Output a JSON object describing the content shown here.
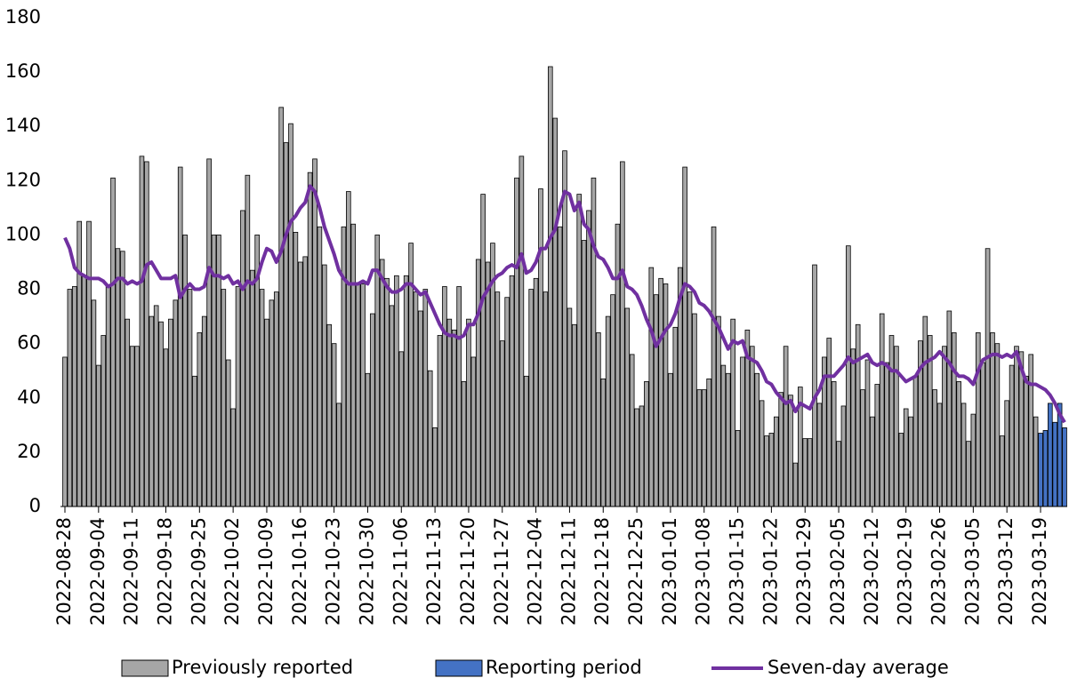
{
  "chart_data": {
    "type": "bar",
    "categories": [
      "2022-08-28",
      null,
      null,
      null,
      null,
      null,
      null,
      "2022-09-04",
      null,
      null,
      null,
      null,
      null,
      null,
      "2022-09-11",
      null,
      null,
      null,
      null,
      null,
      null,
      "2022-09-18",
      null,
      null,
      null,
      null,
      null,
      null,
      "2022-09-25",
      null,
      null,
      null,
      null,
      null,
      null,
      "2022-10-02",
      null,
      null,
      null,
      null,
      null,
      null,
      "2022-10-09",
      null,
      null,
      null,
      null,
      null,
      null,
      "2022-10-16",
      null,
      null,
      null,
      null,
      null,
      null,
      "2022-10-23",
      null,
      null,
      null,
      null,
      null,
      null,
      "2022-10-30",
      null,
      null,
      null,
      null,
      null,
      null,
      "2022-11-06",
      null,
      null,
      null,
      null,
      null,
      null,
      "2022-11-13",
      null,
      null,
      null,
      null,
      null,
      null,
      "2022-11-20",
      null,
      null,
      null,
      null,
      null,
      null,
      "2022-11-27",
      null,
      null,
      null,
      null,
      null,
      null,
      "2022-12-04",
      null,
      null,
      null,
      null,
      null,
      null,
      "2022-12-11",
      null,
      null,
      null,
      null,
      null,
      null,
      "2022-12-18",
      null,
      null,
      null,
      null,
      null,
      null,
      "2022-12-25",
      null,
      null,
      null,
      null,
      null,
      null,
      "2023-01-01",
      null,
      null,
      null,
      null,
      null,
      null,
      "2023-01-08",
      null,
      null,
      null,
      null,
      null,
      null,
      "2023-01-15",
      null,
      null,
      null,
      null,
      null,
      null,
      "2023-01-22",
      null,
      null,
      null,
      null,
      null,
      null,
      "2023-01-29",
      null,
      null,
      null,
      null,
      null,
      null,
      "2023-02-05",
      null,
      null,
      null,
      null,
      null,
      null,
      "2023-02-12",
      null,
      null,
      null,
      null,
      null,
      null,
      "2023-02-19",
      null,
      null,
      null,
      null,
      null,
      null,
      "2023-02-26",
      null,
      null,
      null,
      null,
      null,
      null,
      "2023-03-05",
      null,
      null,
      null,
      null,
      null,
      null,
      "2023-03-12",
      null,
      null,
      null,
      null,
      null,
      null,
      "2023-03-19",
      null,
      null,
      null,
      null,
      null
    ],
    "series": [
      {
        "name": "Previously reported",
        "type": "bar",
        "color": "#a6a6a6",
        "values": [
          55,
          80,
          81,
          105,
          85,
          105,
          76,
          52,
          63,
          81,
          121,
          95,
          94,
          69,
          59,
          59,
          129,
          127,
          70,
          74,
          68,
          58,
          69,
          76,
          125,
          100,
          80,
          48,
          64,
          70,
          128,
          100,
          100,
          80,
          54,
          36,
          81,
          109,
          122,
          87,
          100,
          80,
          69,
          76,
          79,
          147,
          134,
          141,
          101,
          90,
          92,
          123,
          128,
          103,
          89,
          67,
          60,
          38,
          103,
          116,
          104,
          82,
          82,
          49,
          71,
          100,
          91,
          84,
          74,
          85,
          57,
          85,
          97,
          79,
          72,
          80,
          50,
          29,
          63,
          81,
          69,
          65,
          81,
          46,
          69,
          55,
          91,
          115,
          90,
          97,
          79,
          61,
          77,
          85,
          121,
          129,
          48,
          80,
          84,
          117,
          79,
          162,
          143,
          103,
          131,
          73,
          67,
          115,
          98,
          109,
          121,
          64,
          47,
          70,
          78,
          104,
          127,
          73,
          56,
          36,
          37,
          46,
          88,
          78,
          84,
          82,
          49,
          66,
          88,
          125,
          79,
          71,
          43,
          43,
          47,
          103,
          70,
          52,
          49,
          69,
          28,
          55,
          65,
          59,
          49,
          39,
          26,
          27,
          33,
          42,
          59,
          41,
          16,
          44,
          25,
          25,
          89,
          38,
          55,
          62,
          46,
          24,
          37,
          96,
          58,
          67,
          43,
          54,
          33,
          45,
          71,
          53,
          63,
          59,
          27,
          36,
          33,
          48,
          61,
          70,
          63,
          43,
          38,
          59,
          72,
          64,
          46,
          38,
          24,
          34,
          64,
          53,
          95,
          64,
          60,
          26,
          39,
          52,
          59,
          57,
          48,
          56,
          33,
          null,
          null,
          null,
          null,
          null,
          null
        ]
      },
      {
        "name": "Reporting period",
        "type": "bar",
        "color": "#4472c4",
        "values": [
          null,
          null,
          null,
          null,
          null,
          null,
          null,
          null,
          null,
          null,
          null,
          null,
          null,
          null,
          null,
          null,
          null,
          null,
          null,
          null,
          null,
          null,
          null,
          null,
          null,
          null,
          null,
          null,
          null,
          null,
          null,
          null,
          null,
          null,
          null,
          null,
          null,
          null,
          null,
          null,
          null,
          null,
          null,
          null,
          null,
          null,
          null,
          null,
          null,
          null,
          null,
          null,
          null,
          null,
          null,
          null,
          null,
          null,
          null,
          null,
          null,
          null,
          null,
          null,
          null,
          null,
          null,
          null,
          null,
          null,
          null,
          null,
          null,
          null,
          null,
          null,
          null,
          null,
          null,
          null,
          null,
          null,
          null,
          null,
          null,
          null,
          null,
          null,
          null,
          null,
          null,
          null,
          null,
          null,
          null,
          null,
          null,
          null,
          null,
          null,
          null,
          null,
          null,
          null,
          null,
          null,
          null,
          null,
          null,
          null,
          null,
          null,
          null,
          null,
          null,
          null,
          null,
          null,
          null,
          null,
          null,
          null,
          null,
          null,
          null,
          null,
          null,
          null,
          null,
          null,
          null,
          null,
          null,
          null,
          null,
          null,
          null,
          null,
          null,
          null,
          null,
          null,
          null,
          null,
          null,
          null,
          null,
          null,
          null,
          null,
          null,
          null,
          null,
          null,
          null,
          null,
          null,
          null,
          null,
          null,
          null,
          null,
          null,
          null,
          null,
          null,
          null,
          null,
          null,
          null,
          null,
          null,
          null,
          null,
          null,
          null,
          null,
          null,
          null,
          null,
          null,
          null,
          null,
          null,
          null,
          null,
          null,
          null,
          null,
          null,
          null,
          null,
          null,
          null,
          null,
          null,
          null,
          null,
          null,
          null,
          null,
          null,
          null,
          27,
          28,
          38,
          31,
          38,
          29
        ]
      },
      {
        "name": "Seven-day average",
        "type": "line",
        "color": "#7030a0",
        "values": [
          99,
          95,
          88,
          86,
          85,
          84,
          84,
          84,
          83,
          81,
          82,
          84,
          84,
          82,
          83,
          82,
          83,
          89,
          90,
          87,
          84,
          84,
          84,
          85,
          77,
          80,
          82,
          80,
          80,
          81,
          88,
          85,
          85,
          84,
          85,
          82,
          83,
          80,
          83,
          82,
          84,
          90,
          95,
          94,
          90,
          94,
          100,
          105,
          107,
          110,
          112,
          118,
          116,
          110,
          103,
          98,
          93,
          87,
          84,
          82,
          82,
          82,
          83,
          82,
          87,
          87,
          84,
          81,
          79,
          79,
          80,
          82,
          82,
          80,
          78,
          79,
          75,
          71,
          67,
          64,
          63,
          63,
          62,
          63,
          67,
          67,
          71,
          77,
          80,
          83,
          85,
          86,
          88,
          89,
          88,
          93,
          86,
          87,
          90,
          95,
          95,
          99,
          102,
          110,
          116,
          115,
          109,
          112,
          104,
          102,
          96,
          92,
          91,
          88,
          84,
          84,
          87,
          81,
          80,
          78,
          74,
          69,
          65,
          59,
          62,
          65,
          67,
          71,
          77,
          82,
          81,
          79,
          75,
          74,
          72,
          69,
          66,
          62,
          58,
          61,
          60,
          61,
          55,
          54,
          53,
          50,
          46,
          45,
          42,
          40,
          38,
          39,
          35,
          38,
          37,
          36,
          40,
          43,
          48,
          48,
          48,
          50,
          52,
          55,
          53,
          54,
          55,
          56,
          53,
          52,
          53,
          52,
          50,
          50,
          48,
          46,
          47,
          48,
          51,
          53,
          54,
          55,
          57,
          55,
          53,
          50,
          48,
          48,
          47,
          45,
          50,
          54,
          55,
          56,
          56,
          55,
          56,
          55,
          57,
          51,
          46,
          45,
          45,
          44,
          43,
          41,
          38,
          34,
          31
        ]
      }
    ],
    "ylim": [
      0,
      180
    ],
    "yticks": [
      0,
      20,
      40,
      60,
      80,
      100,
      120,
      140,
      160,
      180
    ],
    "grid": false,
    "legend": "bottom"
  }
}
